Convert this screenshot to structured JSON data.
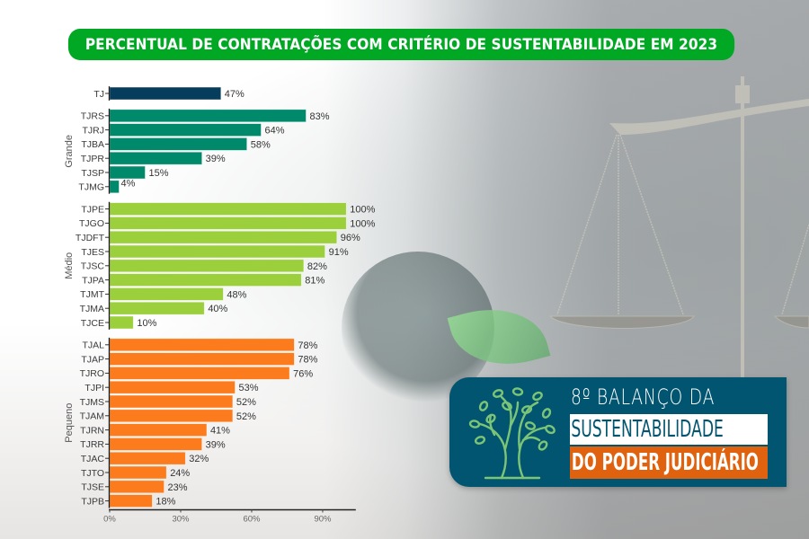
{
  "header": {
    "title": "PERCENTUAL DE CONTRATAÇÕES COM CRITÉRIO DE SUSTENTABILIDADE EM 2023"
  },
  "badge": {
    "line1": "8º BALANÇO DA",
    "line2": "SUSTENTABILIDADE",
    "line3": "DO PODER JUDICIÁRIO",
    "icon": "tree-icon"
  },
  "colors": {
    "title_bg": "#00a823",
    "tj": "#063d5c",
    "grande": "#00896b",
    "medio": "#9bcf3c",
    "pequeno": "#fc7b1c",
    "badge_bg": "#025570",
    "badge_orange": "#e0620e"
  },
  "chart_data": {
    "type": "bar",
    "orientation": "horizontal",
    "title": "PERCENTUAL DE CONTRATAÇÕES COM CRITÉRIO DE SUSTENTABILIDADE EM 2023",
    "xlabel": "",
    "ylabel": "",
    "xlim": [
      0,
      104
    ],
    "xticks": [
      "0%",
      "30%",
      "60%",
      "90%"
    ],
    "xtick_values": [
      0,
      30,
      60,
      90
    ],
    "grid": false,
    "groups": [
      {
        "name": "",
        "color_key": "tj",
        "categories": [
          "TJ"
        ],
        "values": [
          47
        ],
        "labels": [
          "47%"
        ]
      },
      {
        "name": "Grande",
        "color_key": "grande",
        "categories": [
          "TJRS",
          "TJRJ",
          "TJBA",
          "TJPR",
          "TJSP",
          "TJMG"
        ],
        "values": [
          83,
          64,
          58,
          39,
          15,
          4
        ],
        "labels": [
          "83%",
          "64%",
          "58%",
          "39%",
          "15%",
          "4%"
        ]
      },
      {
        "name": "Médio",
        "color_key": "medio",
        "categories": [
          "TJPE",
          "TJGO",
          "TJDFT",
          "TJES",
          "TJSC",
          "TJPA",
          "TJMT",
          "TJMA",
          "TJCE"
        ],
        "values": [
          100,
          100,
          96,
          91,
          82,
          81,
          48,
          40,
          10
        ],
        "labels": [
          "100%",
          "100%",
          "96%",
          "91%",
          "82%",
          "81%",
          "48%",
          "40%",
          "10%"
        ]
      },
      {
        "name": "Pequeno",
        "color_key": "pequeno",
        "categories": [
          "TJAL",
          "TJAP",
          "TJRO",
          "TJPI",
          "TJMS",
          "TJAM",
          "TJRN",
          "TJRR",
          "TJAC",
          "TJTO",
          "TJSE",
          "TJPB"
        ],
        "values": [
          78,
          78,
          76,
          53,
          52,
          52,
          41,
          39,
          32,
          24,
          23,
          18
        ],
        "labels": [
          "78%",
          "78%",
          "76%",
          "53%",
          "52%",
          "52%",
          "41%",
          "39%",
          "32%",
          "24%",
          "23%",
          "18%"
        ]
      }
    ]
  }
}
